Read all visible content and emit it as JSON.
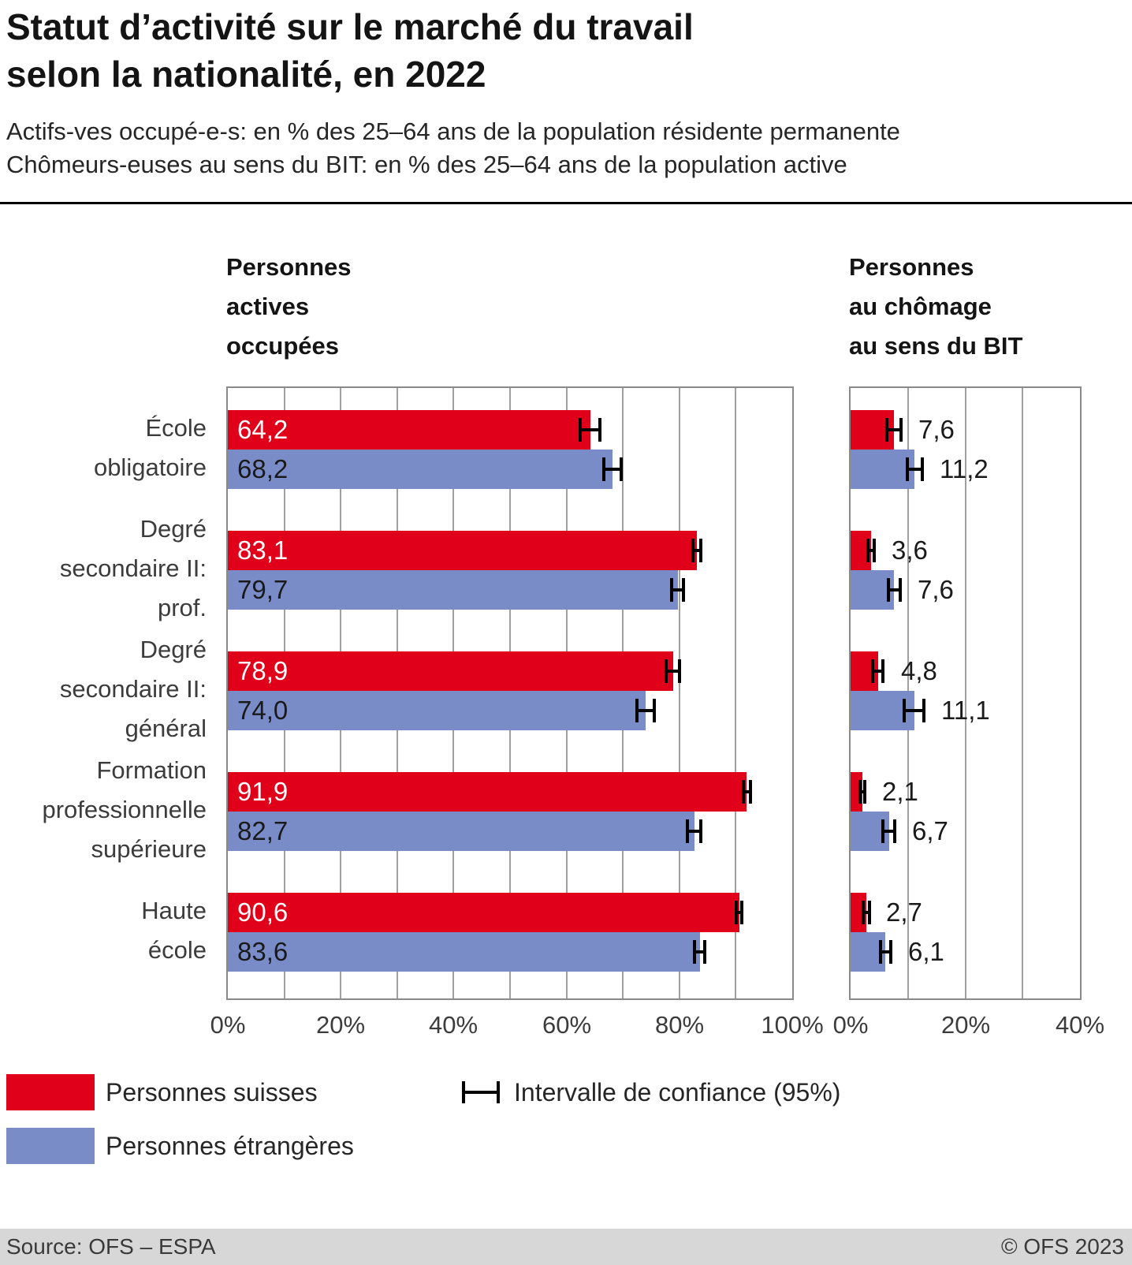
{
  "header": {
    "title_lines": [
      "Statut d’activité sur le marché du travail",
      "selon la nationalité, en 2022"
    ],
    "subtitle_lines": [
      "Actifs-ves occupé-e-s: en % des 25–64 ans de la population résidente permanente",
      "Chômeurs-euses au sens du BIT: en % des 25–64 ans de la population active"
    ]
  },
  "colors": {
    "swiss": "#e10019",
    "foreign": "#7a8cc8",
    "grid": "#a0a0a0",
    "frame": "#8a8a8a",
    "error_bar": "#000000",
    "footer_bg": "#d7d7d7"
  },
  "chart_data": {
    "type": "bar",
    "orientation": "horizontal",
    "categories": [
      {
        "label": "École obligatoire",
        "label_lines": [
          "École",
          "obligatoire"
        ]
      },
      {
        "label": "Degré secondaire II: prof.",
        "label_lines": [
          "Degré",
          "secondaire II:",
          "prof."
        ]
      },
      {
        "label": "Degré secondaire II: général",
        "label_lines": [
          "Degré",
          "secondaire II:",
          "général"
        ]
      },
      {
        "label": "Formation professionnelle supérieure",
        "label_lines": [
          "Formation",
          "professionnelle",
          "supérieure"
        ]
      },
      {
        "label": "Haute école",
        "label_lines": [
          "Haute",
          "école"
        ]
      }
    ],
    "panels": [
      {
        "title": "Personnes actives occupées",
        "title_lines": [
          "Personnes",
          "actives",
          "occupées"
        ],
        "xlim": [
          0,
          100
        ],
        "grid_step": 10,
        "ticks": [
          {
            "value": 0,
            "label": "0%"
          },
          {
            "value": 20,
            "label": "20%"
          },
          {
            "value": 40,
            "label": "40%"
          },
          {
            "value": 60,
            "label": "60%"
          },
          {
            "value": 80,
            "label": "80%"
          },
          {
            "value": 100,
            "label": "100%"
          }
        ],
        "value_label_position": "inside",
        "series": [
          {
            "name": "Personnes suisses",
            "color_key": "swiss",
            "text_color": "#ffffff",
            "values": [
              64.2,
              83.1,
              78.9,
              91.9,
              90.6
            ],
            "value_labels": [
              "64,2",
              "83,1",
              "78,9",
              "91,9",
              "90,6"
            ],
            "ci_half_width": [
              2.0,
              1.0,
              1.5,
              0.9,
              0.8
            ]
          },
          {
            "name": "Personnes étrangères",
            "color_key": "foreign",
            "text_color": "#1a1a1a",
            "values": [
              68.2,
              79.7,
              74.0,
              82.7,
              83.6
            ],
            "value_labels": [
              "68,2",
              "79,7",
              "74,0",
              "82,7",
              "83,6"
            ],
            "ci_half_width": [
              1.8,
              1.3,
              1.8,
              1.5,
              1.2
            ]
          }
        ]
      },
      {
        "title": "Personnes au chômage au sens du BIT",
        "title_lines": [
          "Personnes",
          "au chômage",
          "au sens du BIT"
        ],
        "xlim": [
          0,
          40
        ],
        "grid_step": 10,
        "ticks": [
          {
            "value": 0,
            "label": "0%"
          },
          {
            "value": 20,
            "label": "20%"
          },
          {
            "value": 40,
            "label": "40%"
          }
        ],
        "value_label_position": "outside",
        "series": [
          {
            "name": "Personnes suisses",
            "color_key": "swiss",
            "text_color": "#1a1a1a",
            "values": [
              7.6,
              3.6,
              4.8,
              2.1,
              2.7
            ],
            "value_labels": [
              "7,6",
              "3,6",
              "4,8",
              "2,1",
              "2,7"
            ],
            "ci_half_width": [
              1.5,
              0.8,
              1.2,
              0.7,
              0.8
            ]
          },
          {
            "name": "Personnes étrangères",
            "color_key": "foreign",
            "text_color": "#1a1a1a",
            "values": [
              11.2,
              7.6,
              11.1,
              6.7,
              6.1
            ],
            "value_labels": [
              "11,2",
              "7,6",
              "11,1",
              "6,7",
              "6,1"
            ],
            "ci_half_width": [
              1.6,
              1.3,
              2.0,
              1.3,
              1.2
            ]
          }
        ]
      }
    ],
    "legend": {
      "items": [
        {
          "swatch": "swiss",
          "label": "Personnes suisses"
        },
        {
          "swatch": "foreign",
          "label": "Personnes étrangères"
        }
      ],
      "ci_label": "Intervalle de confiance (95%)"
    }
  },
  "footer": {
    "source": "Source: OFS – ESPA",
    "copyright": "© OFS 2023"
  }
}
